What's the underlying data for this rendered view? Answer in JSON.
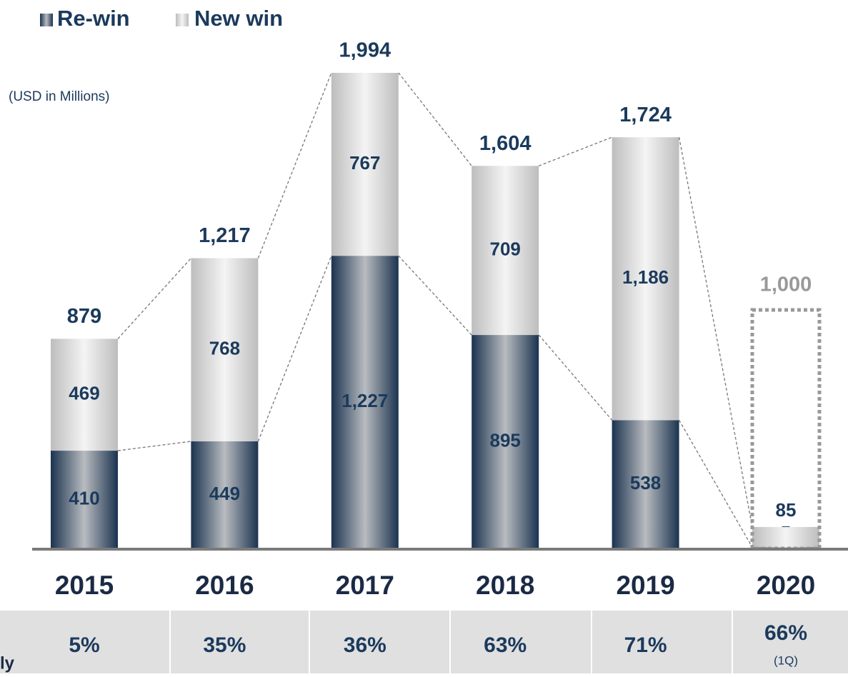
{
  "chart_data": {
    "type": "stacked_bar",
    "unit_label": "(USD in Millions)",
    "categories": [
      "2015",
      "2016",
      "2017",
      "2018",
      "2019",
      "2020"
    ],
    "series": [
      {
        "name": "Re-win",
        "color": "#1b3350",
        "values": [
          410,
          449,
          1227,
          895,
          538,
          5
        ],
        "value_labels": [
          "410",
          "449",
          "1,227",
          "895",
          "538",
          "5"
        ]
      },
      {
        "name": "New win",
        "color": "#d4d4d4",
        "values": [
          469,
          768,
          767,
          709,
          1186,
          85
        ],
        "value_labels": [
          "469",
          "768",
          "767",
          "709",
          "1,186",
          "85"
        ]
      }
    ],
    "totals": [
      879,
      1217,
      1994,
      1604,
      1724,
      null
    ],
    "total_labels": [
      "879",
      "1,217",
      "1,994",
      "1,604",
      "1,724",
      null
    ],
    "target": {
      "value": 1000,
      "label": "1,000"
    },
    "table": {
      "label": "ly",
      "values": [
        5,
        35,
        36,
        63,
        71,
        66
      ],
      "value_labels": [
        "5%",
        "35%",
        "36%",
        "63%",
        "71%",
        "66%"
      ],
      "notes": [
        null,
        null,
        null,
        null,
        null,
        "(1Q)"
      ]
    }
  }
}
